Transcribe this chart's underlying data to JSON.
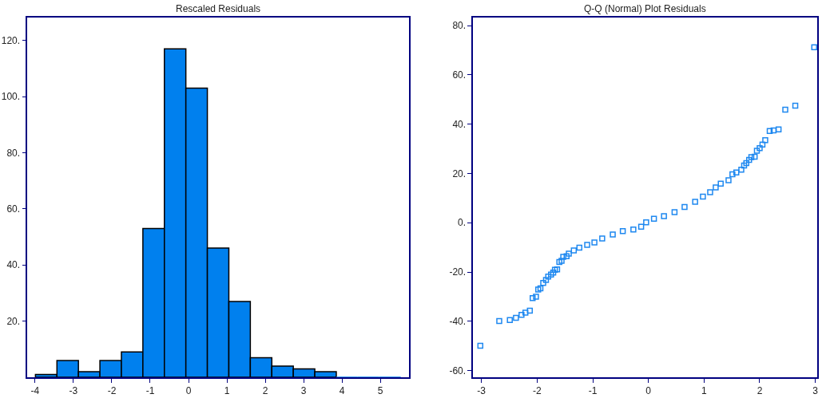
{
  "chart_data": [
    {
      "type": "histogram",
      "title": "Rescaled Residuals",
      "color": "#0080ee",
      "bins": [
        -3.99,
        -3.43,
        -2.87,
        -2.31,
        -1.75,
        -1.19,
        -0.63,
        -0.07,
        0.49,
        1.05,
        1.61,
        2.17,
        2.73,
        3.29,
        3.85,
        4.41,
        4.97,
        5.53
      ],
      "values": [
        1,
        6,
        2,
        6,
        9,
        53,
        117,
        103,
        46,
        27,
        7,
        4,
        3,
        2,
        0,
        0,
        0
      ],
      "xlim": [
        -4.2,
        5.75
      ],
      "xticks": [
        -4,
        -3,
        -2,
        -1,
        0,
        1,
        2,
        3,
        4,
        5
      ],
      "ylim": [
        0,
        128
      ],
      "yticks": [
        {
          "value": 20,
          "label": "20."
        },
        {
          "value": 40,
          "label": "40."
        },
        {
          "value": 60,
          "label": "60."
        },
        {
          "value": 80,
          "label": "80."
        },
        {
          "value": 100,
          "label": "100."
        },
        {
          "value": 120,
          "label": "120."
        }
      ]
    },
    {
      "type": "scatter",
      "title": "Q-Q (Normal) Plot Residuals",
      "color": "#1e88f0",
      "marker": "square",
      "x": [
        -3.02,
        -2.68,
        -2.49,
        -2.38,
        -2.28,
        -2.21,
        -2.13,
        -2.08,
        -2.02,
        -1.98,
        -1.94,
        -1.89,
        -1.84,
        -1.8,
        -1.75,
        -1.71,
        -1.68,
        -1.64,
        -1.6,
        -1.56,
        -1.53,
        -1.47,
        -1.43,
        -1.34,
        -1.24,
        -1.1,
        -0.97,
        -0.83,
        -0.64,
        -0.46,
        -0.27,
        -0.13,
        -0.04,
        0.1,
        0.28,
        0.47,
        0.65,
        0.84,
        0.98,
        1.11,
        1.21,
        1.3,
        1.44,
        1.51,
        1.58,
        1.67,
        1.72,
        1.76,
        1.81,
        1.85,
        1.91,
        1.95,
        2.0,
        2.05,
        2.1,
        2.18,
        2.25,
        2.34,
        2.46,
        2.64,
        2.98
      ],
      "values": [
        -49.9,
        -39.9,
        -39.5,
        -38.6,
        -37.4,
        -36.5,
        -35.7,
        -30.6,
        -30.0,
        -27.1,
        -26.6,
        -24.4,
        -23.2,
        -21.8,
        -21.0,
        -20.2,
        -19.1,
        -18.9,
        -15.9,
        -15.4,
        -13.8,
        -13.6,
        -12.5,
        -11.2,
        -10.1,
        -9.0,
        -8.0,
        -6.4,
        -4.8,
        -3.4,
        -2.7,
        -1.6,
        0.2,
        1.6,
        2.7,
        4.3,
        6.4,
        8.5,
        10.6,
        12.4,
        14.3,
        15.9,
        17.2,
        19.7,
        20.4,
        21.5,
        23.2,
        24.2,
        25.5,
        26.6,
        26.8,
        29.2,
        30.3,
        31.7,
        33.5,
        37.2,
        37.5,
        37.9,
        45.9,
        47.5,
        71.2
      ],
      "xlim": [
        -3.15,
        3.04
      ],
      "xticks": [
        -3,
        -2,
        -1,
        0,
        1,
        2,
        3
      ],
      "ylim": [
        -62.7,
        83.1
      ],
      "yticks": [
        {
          "value": -60,
          "label": "-60."
        },
        {
          "value": -40,
          "label": "-40."
        },
        {
          "value": -20,
          "label": "-20."
        },
        {
          "value": 0,
          "label": "0."
        },
        {
          "value": 20,
          "label": "20."
        },
        {
          "value": 40,
          "label": "40."
        },
        {
          "value": 60,
          "label": "60."
        },
        {
          "value": 80,
          "label": "80."
        }
      ]
    }
  ]
}
